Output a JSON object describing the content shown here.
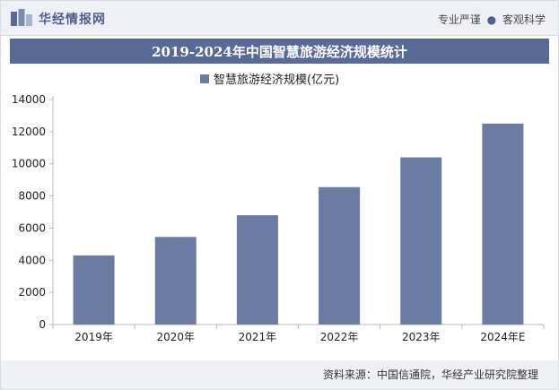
{
  "header": {
    "brand": "华经情报网",
    "slogan_left": "专业严谨",
    "slogan_sep": "●",
    "slogan_right": "客观科学"
  },
  "footer": {
    "source": "资料来源：中国信通院，华经产业研究院整理"
  },
  "colors": {
    "bar": "#6b7ba1",
    "title_bg": "#5a6a96",
    "axis": "#b8b8b8",
    "text": "#222222"
  },
  "chart_data": {
    "type": "bar",
    "title": "2019-2024年中国智慧旅游经济规模统计",
    "categories": [
      "2019年",
      "2020年",
      "2021年",
      "2022年",
      "2023年",
      "2024年E"
    ],
    "series": [
      {
        "name": "智慧旅游经济规模(亿元)",
        "values": [
          4300,
          5450,
          6800,
          8550,
          10400,
          12500
        ]
      }
    ],
    "ylim": [
      0,
      14000
    ],
    "yticks": [
      0,
      2000,
      4000,
      6000,
      8000,
      10000,
      12000,
      14000
    ],
    "xlabel": "",
    "ylabel": "",
    "grid": false,
    "legend": "top-center"
  }
}
